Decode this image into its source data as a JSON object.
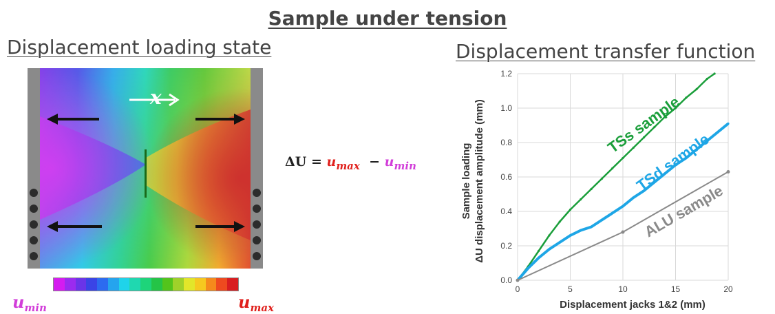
{
  "header": {
    "title": "Sample under tension"
  },
  "left_panel": {
    "title": "Displacement loading state",
    "axis_symbol": "x",
    "colorbar_min_label": {
      "base": "u",
      "sub": "min"
    },
    "colorbar_max_label": {
      "base": "u",
      "sub": "max"
    },
    "colorbar_colors": [
      "#d51cf0",
      "#9b2bef",
      "#6b34e8",
      "#3a44e6",
      "#2c6bf0",
      "#25a4ee",
      "#1fd3ea",
      "#1fd8b0",
      "#1ed47a",
      "#25c447",
      "#53c41c",
      "#9fd12a",
      "#e2e62a",
      "#f6c81f",
      "#f58a1c",
      "#ee4a1f",
      "#d81d20"
    ]
  },
  "equation": {
    "lhs": "ΔU",
    "eq": "=",
    "minus": "−",
    "u_max": {
      "base": "u",
      "sub": "max"
    },
    "u_min": {
      "base": "u",
      "sub": "min"
    }
  },
  "right_panel": {
    "title": "Displacement transfer function"
  },
  "chart_data": {
    "type": "line",
    "xlabel": "Displacement jacks 1&2 (mm)",
    "ylabel_line1": "Sample loading",
    "ylabel_line2": "ΔU displacement amplitude (mm)",
    "xlim": [
      0,
      20
    ],
    "ylim": [
      0,
      1.2
    ],
    "x_ticks": [
      "0",
      "5",
      "10",
      "15",
      "20"
    ],
    "y_ticks": [
      "0.0",
      "0.2",
      "0.4",
      "0.6",
      "0.8",
      "1.0",
      "1.2"
    ],
    "grid": true,
    "series": [
      {
        "name": "TSs sample",
        "color": "#1a9e3a",
        "x": [
          0,
          1,
          2,
          3,
          4,
          5,
          6,
          7,
          8,
          9,
          10,
          11,
          12,
          13,
          14,
          15,
          16,
          17,
          18,
          18.7
        ],
        "y": [
          0,
          0.08,
          0.17,
          0.26,
          0.34,
          0.41,
          0.47,
          0.53,
          0.59,
          0.65,
          0.71,
          0.77,
          0.83,
          0.89,
          0.95,
          1.0,
          1.06,
          1.11,
          1.17,
          1.2
        ]
      },
      {
        "name": "TSd sample",
        "color": "#1ea6e6",
        "x": [
          0,
          1,
          2,
          3,
          4,
          5,
          6,
          7,
          8,
          9,
          10,
          11,
          12,
          13,
          14,
          15,
          16,
          17,
          18,
          19,
          20
        ],
        "y": [
          0,
          0.07,
          0.13,
          0.18,
          0.22,
          0.26,
          0.29,
          0.31,
          0.35,
          0.39,
          0.43,
          0.48,
          0.52,
          0.57,
          0.62,
          0.67,
          0.71,
          0.76,
          0.81,
          0.86,
          0.91
        ]
      },
      {
        "name": "ALU sample",
        "color": "#8a8a8a",
        "x": [
          0,
          10,
          20
        ],
        "y": [
          0,
          0.28,
          0.63
        ]
      }
    ]
  }
}
